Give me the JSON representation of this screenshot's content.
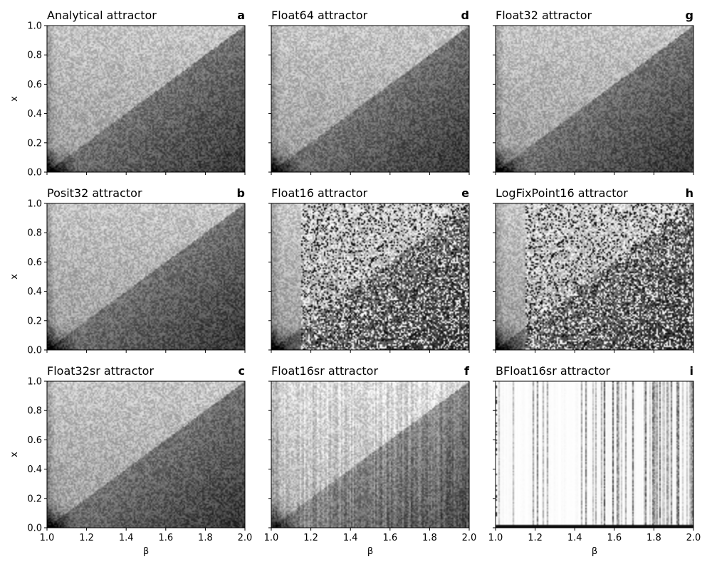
{
  "chart_data": [
    {
      "type": "heatmap",
      "panel": "a",
      "title": "Analytical attractor",
      "xlabel": "",
      "ylabel": "x",
      "xlim": [
        1.0,
        2.0
      ],
      "ylim": [
        0.0,
        1.0
      ],
      "regime": "smooth"
    },
    {
      "type": "heatmap",
      "panel": "d",
      "title": "Float64 attractor",
      "xlabel": "",
      "ylabel": "",
      "xlim": [
        1.0,
        2.0
      ],
      "ylim": [
        0.0,
        1.0
      ],
      "regime": "smooth"
    },
    {
      "type": "heatmap",
      "panel": "g",
      "title": "Float32 attractor",
      "xlabel": "",
      "ylabel": "",
      "xlim": [
        1.0,
        2.0
      ],
      "ylim": [
        0.0,
        1.0
      ],
      "regime": "smooth"
    },
    {
      "type": "heatmap",
      "panel": "b",
      "title": "Posit32 attractor",
      "xlabel": "",
      "ylabel": "x",
      "xlim": [
        1.0,
        2.0
      ],
      "ylim": [
        0.0,
        1.0
      ],
      "regime": "smooth"
    },
    {
      "type": "heatmap",
      "panel": "e",
      "title": "Float16 attractor",
      "xlabel": "",
      "ylabel": "",
      "xlim": [
        1.0,
        2.0
      ],
      "ylim": [
        0.0,
        1.0
      ],
      "regime": "noisy"
    },
    {
      "type": "heatmap",
      "panel": "h",
      "title": "LogFixPoint16 attractor",
      "xlabel": "",
      "ylabel": "",
      "xlim": [
        1.0,
        2.0
      ],
      "ylim": [
        0.0,
        1.0
      ],
      "regime": "noisy"
    },
    {
      "type": "heatmap",
      "panel": "c",
      "title": "Float32sr attractor",
      "xlabel": "β",
      "ylabel": "x",
      "xlim": [
        1.0,
        2.0
      ],
      "ylim": [
        0.0,
        1.0
      ],
      "regime": "smooth"
    },
    {
      "type": "heatmap",
      "panel": "f",
      "title": "Float16sr attractor",
      "xlabel": "β",
      "ylabel": "",
      "xlim": [
        1.0,
        2.0
      ],
      "ylim": [
        0.0,
        1.0
      ],
      "regime": "striped"
    },
    {
      "type": "heatmap",
      "panel": "i",
      "title": "BFloat16sr attractor",
      "xlabel": "β",
      "ylabel": "",
      "xlim": [
        1.0,
        2.0
      ],
      "ylim": [
        0.0,
        1.0
      ],
      "regime": "sparse"
    }
  ],
  "x_ticks": [
    "1.0",
    "1.2",
    "1.4",
    "1.6",
    "1.8",
    "2.0"
  ],
  "y_ticks": [
    "0.0",
    "0.2",
    "0.4",
    "0.6",
    "0.8",
    "1.0"
  ],
  "colormap": {
    "low": "#ffffff",
    "high": "#000000"
  }
}
